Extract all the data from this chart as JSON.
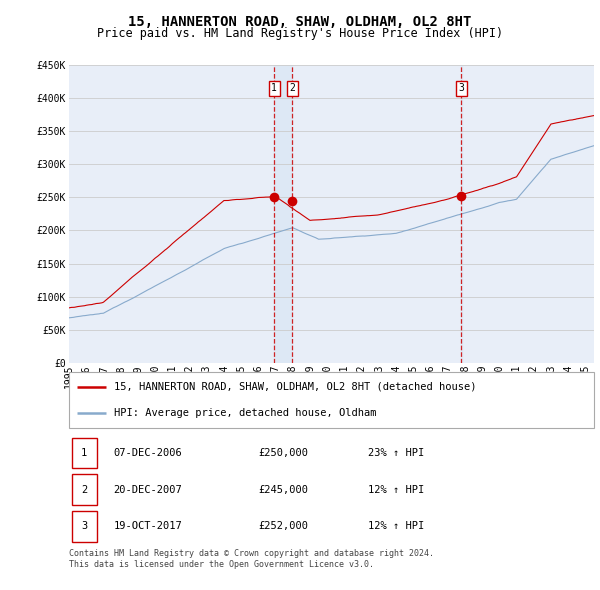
{
  "title": "15, HANNERTON ROAD, SHAW, OLDHAM, OL2 8HT",
  "subtitle": "Price paid vs. HM Land Registry's House Price Index (HPI)",
  "ylabel_ticks": [
    "£0",
    "£50K",
    "£100K",
    "£150K",
    "£200K",
    "£250K",
    "£300K",
    "£350K",
    "£400K",
    "£450K"
  ],
  "ytick_values": [
    0,
    50000,
    100000,
    150000,
    200000,
    250000,
    300000,
    350000,
    400000,
    450000
  ],
  "ylim": [
    0,
    450000
  ],
  "xlim_start": 1995.0,
  "xlim_end": 2025.5,
  "x_ticks": [
    1995,
    1996,
    1997,
    1998,
    1999,
    2000,
    2001,
    2002,
    2003,
    2004,
    2005,
    2006,
    2007,
    2008,
    2009,
    2010,
    2011,
    2012,
    2013,
    2014,
    2015,
    2016,
    2017,
    2018,
    2019,
    2020,
    2021,
    2022,
    2023,
    2024,
    2025
  ],
  "sale_dates": [
    2006.92,
    2007.97,
    2017.8
  ],
  "sale_prices": [
    250000,
    245000,
    252000
  ],
  "sale_labels": [
    "1",
    "2",
    "3"
  ],
  "red_line_color": "#cc0000",
  "blue_line_color": "#88aacc",
  "marker_color_red": "#cc0000",
  "dashed_line_color": "#cc0000",
  "grid_color": "#cccccc",
  "background_color": "#e8eef8",
  "shade_color": "#dde8f5",
  "legend_label_red": "15, HANNERTON ROAD, SHAW, OLDHAM, OL2 8HT (detached house)",
  "legend_label_blue": "HPI: Average price, detached house, Oldham",
  "table_entries": [
    {
      "num": "1",
      "date": "07-DEC-2006",
      "price": "£250,000",
      "change": "23% ↑ HPI"
    },
    {
      "num": "2",
      "date": "20-DEC-2007",
      "price": "£245,000",
      "change": "12% ↑ HPI"
    },
    {
      "num": "3",
      "date": "19-OCT-2017",
      "price": "£252,000",
      "change": "12% ↑ HPI"
    }
  ],
  "footer": "Contains HM Land Registry data © Crown copyright and database right 2024.\nThis data is licensed under the Open Government Licence v3.0.",
  "title_fontsize": 10,
  "subtitle_fontsize": 8.5,
  "tick_fontsize": 7,
  "legend_fontsize": 7.5,
  "table_fontsize": 7.5,
  "footer_fontsize": 6
}
